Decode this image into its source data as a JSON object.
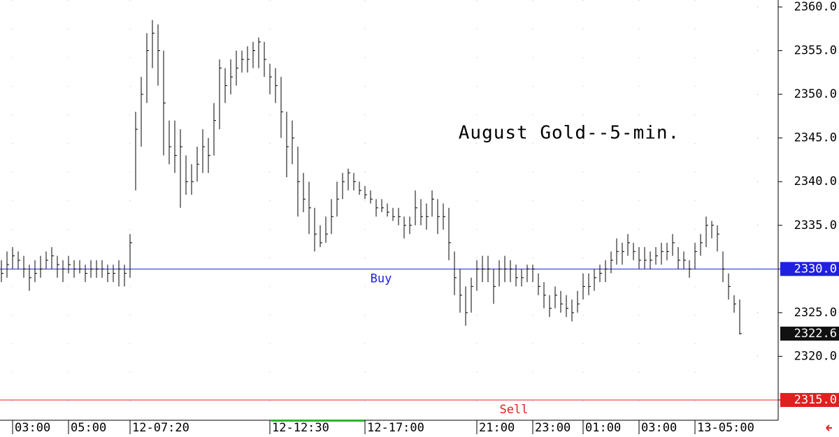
{
  "chart_data": {
    "type": "ohlc",
    "title": "August Gold--5-min.",
    "bars": {
      "high": [
        2331,
        2332,
        2332.5,
        2332,
        2331.5,
        2330.5,
        2331,
        2331.5,
        2332,
        2332.5,
        2331.5,
        2331,
        2331.5,
        2331,
        2331,
        2330.5,
        2331,
        2331,
        2331,
        2330.5,
        2330.5,
        2331,
        2330.5,
        2334,
        2348,
        2352,
        2357,
        2358.5,
        2358,
        2355,
        2347,
        2347,
        2346,
        2343,
        2342,
        2344,
        2346,
        2345,
        2349,
        2354,
        2353,
        2354,
        2355,
        2355,
        2355.5,
        2356,
        2356.5,
        2356,
        2353.5,
        2353,
        2352,
        2348,
        2347,
        2344,
        2341,
        2340,
        2337,
        2335,
        2336,
        2338,
        2340,
        2341,
        2341.5,
        2341,
        2340,
        2339.5,
        2339,
        2338,
        2338,
        2337.5,
        2337,
        2337,
        2336,
        2336,
        2339,
        2338,
        2337.5,
        2339,
        2338,
        2337.5,
        2337,
        2332,
        2330,
        2328,
        2329,
        2331,
        2331.5,
        2331.5,
        2330,
        2331,
        2331.5,
        2331,
        2330.5,
        2330,
        2330.5,
        2330.5,
        2329.5,
        2328.5,
        2327,
        2328,
        2327.5,
        2327,
        2326.5,
        2327.5,
        2329.5,
        2329.5,
        2330,
        2330.5,
        2331,
        2332,
        2333.5,
        2333,
        2334,
        2333,
        2332.5,
        2332.5,
        2332,
        2332.5,
        2333,
        2333,
        2334,
        2332.5,
        2332,
        2331,
        2333,
        2334,
        2336,
        2335.5,
        2335,
        2332,
        2329.5,
        2327,
        2326.5
      ],
      "low": [
        2328.5,
        2329,
        2330,
        2330,
        2329,
        2327.5,
        2328.5,
        2329,
        2330,
        2330,
        2329,
        2328.5,
        2329.5,
        2329,
        2329.5,
        2328.5,
        2329,
        2329,
        2329,
        2328.5,
        2328.5,
        2328,
        2328,
        2329,
        2339,
        2344,
        2349,
        2353,
        2351,
        2343,
        2342,
        2341,
        2337,
        2338.5,
        2338.5,
        2340,
        2341,
        2341,
        2343,
        2346,
        2349,
        2350,
        2351,
        2352.5,
        2352.5,
        2353,
        2353,
        2352,
        2350,
        2349,
        2345,
        2340.5,
        2342,
        2336,
        2336.5,
        2334,
        2332,
        2332.5,
        2333,
        2334,
        2336,
        2338,
        2339,
        2339,
        2338.5,
        2338,
        2337.5,
        2336,
        2336.5,
        2336,
        2335.5,
        2335,
        2333.5,
        2334,
        2335,
        2335,
        2334.5,
        2336,
        2334,
        2334.5,
        2331,
        2327,
        2325,
        2323.5,
        2325,
        2327.5,
        2328.5,
        2328.5,
        2326,
        2328,
        2328.5,
        2328.5,
        2328,
        2328,
        2328.5,
        2328.5,
        2327,
        2325.5,
        2324.5,
        2325.5,
        2325,
        2324.5,
        2324,
        2325,
        2326.5,
        2327,
        2327.5,
        2328.5,
        2328.5,
        2329.5,
        2330.5,
        2330.5,
        2331.5,
        2331,
        2330,
        2330,
        2330,
        2330.5,
        2330.5,
        2331,
        2331.5,
        2330,
        2330,
        2329,
        2330,
        2331.5,
        2332.5,
        2333.5,
        2332,
        2328.5,
        2326.5,
        2325,
        2322.5
      ],
      "close": [
        2329.5,
        2330.5,
        2331.5,
        2331,
        2330,
        2329,
        2329.5,
        2330,
        2331,
        2331.5,
        2330.5,
        2330,
        2330.5,
        2330,
        2330,
        2329.5,
        2330,
        2330,
        2330,
        2329.5,
        2329.5,
        2330,
        2329.5,
        2333,
        2346,
        2350,
        2355,
        2357,
        2355,
        2349,
        2344,
        2343,
        2344,
        2340,
        2340,
        2342,
        2344,
        2343,
        2347,
        2353,
        2351,
        2352,
        2353,
        2354,
        2354,
        2355,
        2356,
        2354,
        2352,
        2351,
        2348,
        2344,
        2345,
        2340,
        2338,
        2337,
        2334,
        2333,
        2334,
        2336,
        2338,
        2340,
        2341,
        2340,
        2339,
        2338.5,
        2338,
        2337,
        2337,
        2336.5,
        2336,
        2336,
        2335,
        2335,
        2337,
        2336,
        2336,
        2338,
        2336,
        2336,
        2333,
        2329,
        2327,
        2325,
        2328,
        2330,
        2330,
        2330,
        2328,
        2330,
        2330,
        2330,
        2329,
        2329,
        2330,
        2330,
        2328,
        2327,
        2325.5,
        2327,
        2326,
        2325.5,
        2325,
        2326,
        2328,
        2328,
        2329,
        2329.5,
        2330,
        2331,
        2332,
        2332,
        2333,
        2332,
        2331,
        2331,
        2331,
        2331.5,
        2332,
        2332,
        2333,
        2331,
        2331,
        2330,
        2332,
        2333,
        2335,
        2335,
        2334,
        2330,
        2328,
        2326,
        2322.6
      ]
    },
    "color": "#000000",
    "ylim": [
      2313,
      2360.8
    ],
    "yticks": [
      {
        "value": 2315,
        "label": "2315.0"
      },
      {
        "value": 2320,
        "label": "2320.0"
      },
      {
        "value": 2325,
        "label": "2325.0"
      },
      {
        "value": 2330,
        "label": "2330.0"
      },
      {
        "value": 2335,
        "label": "2335.0"
      },
      {
        "value": 2340,
        "label": "2340.0"
      },
      {
        "value": 2345,
        "label": "2345.0"
      },
      {
        "value": 2350,
        "label": "2350.0"
      },
      {
        "value": 2355,
        "label": "2355.0"
      },
      {
        "value": 2360,
        "label": "2360.0"
      }
    ],
    "xticks": [
      {
        "value": 2,
        "label": "03:00"
      },
      {
        "value": 12,
        "label": "05:00"
      },
      {
        "value": 23,
        "label": "12-07:20"
      },
      {
        "value": 48,
        "label": "12-12:30"
      },
      {
        "value": 65,
        "label": "12-17:00"
      },
      {
        "value": 85,
        "label": "21:00"
      },
      {
        "value": 95,
        "label": "23:00"
      },
      {
        "value": 104,
        "label": "01:00"
      },
      {
        "value": 114,
        "label": "03:00"
      },
      {
        "value": 124,
        "label": "13-05:00"
      }
    ],
    "levels": [
      {
        "name": "Buy",
        "value": 2330,
        "label": "2330.0",
        "color": "#2020e0"
      },
      {
        "name": "Sell",
        "value": 2315,
        "label": "2315.0",
        "color": "#e02020"
      }
    ],
    "last_price": {
      "value": 2322.6,
      "label": "2322.6"
    }
  }
}
